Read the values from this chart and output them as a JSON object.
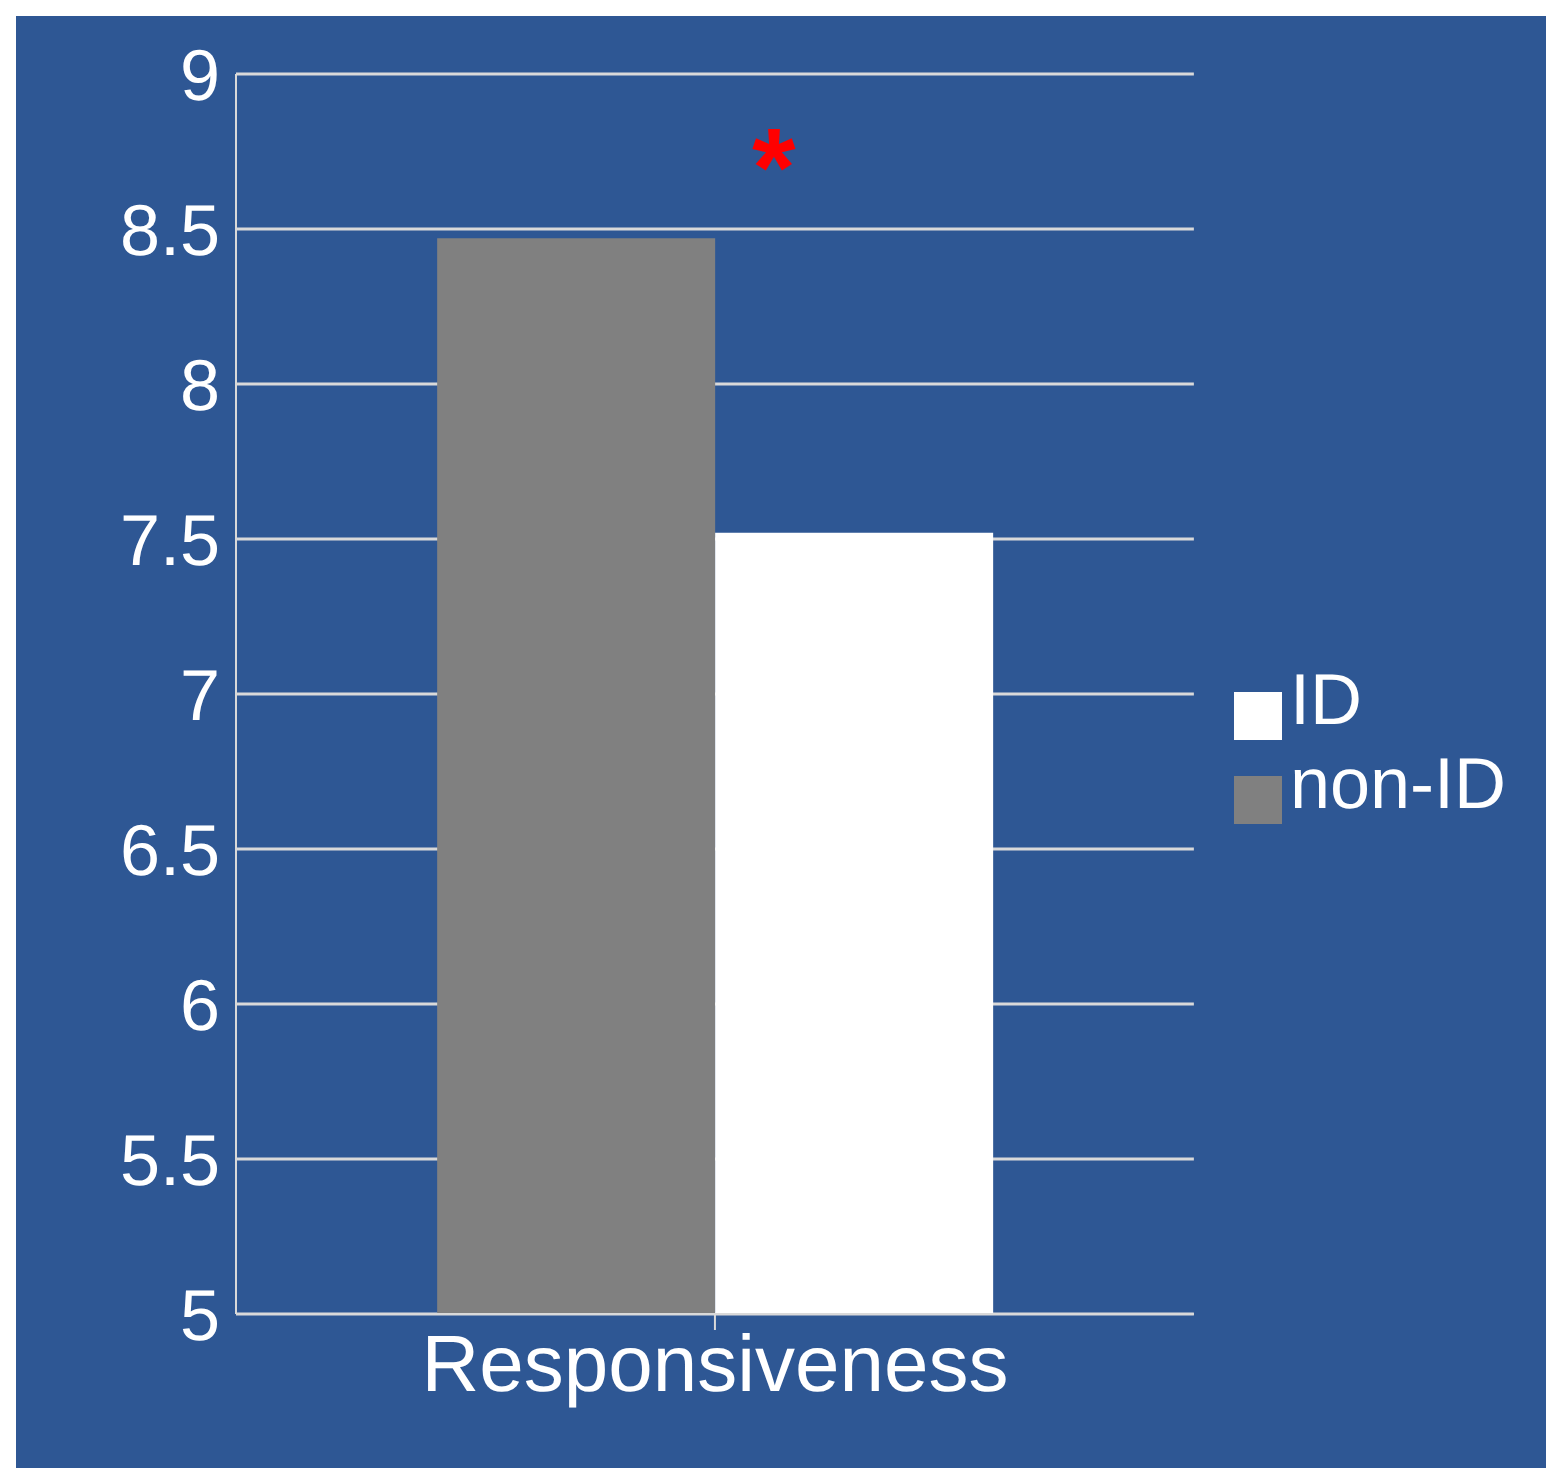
{
  "chart_data": {
    "type": "bar",
    "categories": [
      "Responsiveness"
    ],
    "series": [
      {
        "name": "non-ID",
        "color": "#808080",
        "values": [
          8.47
        ]
      },
      {
        "name": "ID",
        "color": "#ffffff",
        "values": [
          7.52
        ]
      }
    ],
    "ylim": [
      5,
      9
    ],
    "yticks": [
      5,
      5.5,
      6,
      6.5,
      7,
      7.5,
      8,
      8.5,
      9
    ],
    "grid": "y",
    "legend": "right",
    "annotations": [
      "*"
    ]
  }
}
